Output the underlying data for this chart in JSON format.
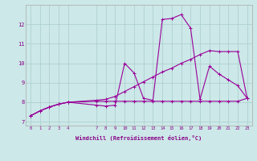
{
  "background_color": "#cce8e8",
  "grid_color": "#aacccc",
  "line_color": "#990099",
  "xlabel": "Windchill (Refroidissement éolien,°C)",
  "ylim": [
    6.8,
    13.0
  ],
  "xlim": [
    -0.5,
    23.5
  ],
  "yticks": [
    7,
    8,
    9,
    10,
    11,
    12
  ],
  "xticks": [
    0,
    1,
    2,
    3,
    4,
    7,
    8,
    9,
    10,
    11,
    12,
    13,
    14,
    15,
    16,
    17,
    18,
    19,
    20,
    21,
    22,
    23
  ],
  "series1_x": [
    0,
    1,
    2,
    3,
    4,
    7,
    8,
    9,
    10,
    11,
    12,
    13,
    14,
    15,
    16,
    17,
    18,
    19,
    20,
    21,
    22,
    23
  ],
  "series1_y": [
    7.3,
    7.55,
    7.75,
    7.9,
    8.0,
    8.05,
    8.05,
    8.05,
    8.05,
    8.05,
    8.05,
    8.05,
    8.05,
    8.05,
    8.05,
    8.05,
    8.05,
    8.05,
    8.05,
    8.05,
    8.05,
    8.2
  ],
  "series2_x": [
    0,
    1,
    2,
    3,
    4,
    7,
    8,
    9,
    10,
    11,
    12,
    13,
    14,
    15,
    16,
    17,
    18,
    19,
    20,
    21,
    22,
    23
  ],
  "series2_y": [
    7.3,
    7.55,
    7.75,
    7.9,
    8.0,
    8.1,
    8.15,
    8.3,
    8.55,
    8.8,
    9.05,
    9.3,
    9.55,
    9.75,
    10.0,
    10.2,
    10.45,
    10.65,
    10.6,
    10.6,
    10.6,
    8.2
  ],
  "series3_x": [
    0,
    1,
    2,
    3,
    4,
    7,
    8,
    9,
    10,
    11,
    12,
    13,
    14,
    15,
    16,
    17,
    18,
    19,
    20,
    21,
    22,
    23
  ],
  "series3_y": [
    7.3,
    7.55,
    7.75,
    7.9,
    8.0,
    7.85,
    7.8,
    7.85,
    10.0,
    9.5,
    8.2,
    8.1,
    12.25,
    12.3,
    12.5,
    11.8,
    8.15,
    9.85,
    9.45,
    9.15,
    8.85,
    8.2
  ]
}
